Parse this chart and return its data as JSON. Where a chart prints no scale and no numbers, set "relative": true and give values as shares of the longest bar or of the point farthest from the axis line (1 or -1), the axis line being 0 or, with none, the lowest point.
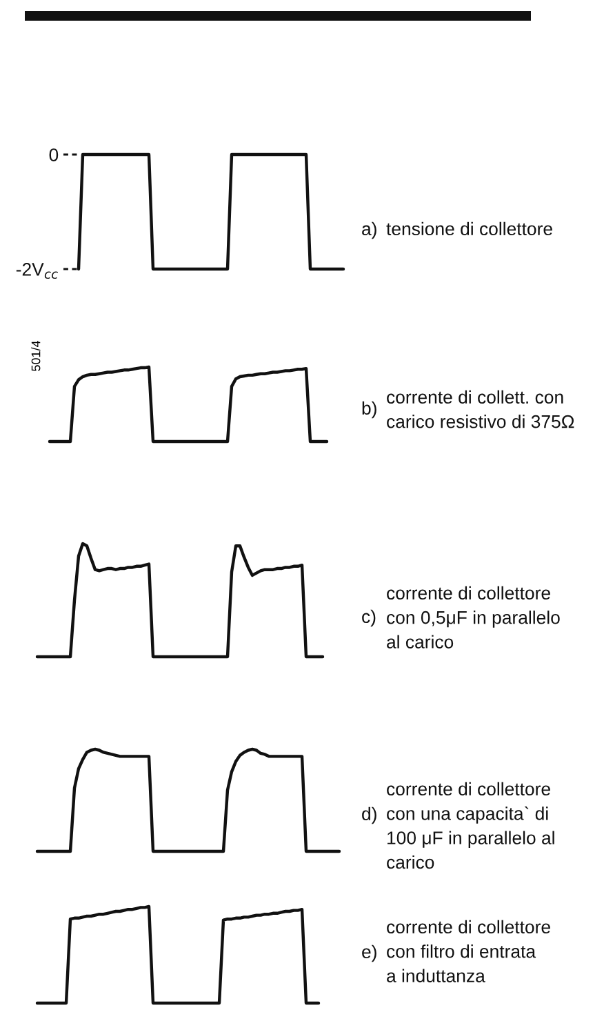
{
  "chart_data": [
    {
      "type": "line",
      "annotations": [
        "a)",
        "tensione di collettore"
      ],
      "tick_labels": "y",
      "ylim": [
        -2,
        0
      ],
      "yticks": [
        0,
        {
          "value": -2,
          "label": "-2V$_{cc}$"
        }
      ],
      "color": "#111111",
      "categories": [
        null,
        null,
        null,
        null,
        null,
        null,
        null,
        null,
        null,
        null,
        null,
        null,
        null,
        null,
        null,
        null,
        null,
        null,
        null,
        null,
        null,
        null,
        null,
        null,
        null,
        null,
        null,
        null,
        null,
        null,
        null,
        null,
        null,
        null,
        null,
        null,
        null,
        null,
        null,
        null,
        null,
        null,
        null,
        null,
        null,
        null,
        null,
        null,
        null,
        null,
        null,
        null,
        null,
        null,
        null,
        null,
        null,
        null,
        null,
        null,
        null,
        null,
        null,
        null,
        null,
        null,
        null,
        null,
        null,
        null,
        null,
        null,
        null,
        null,
        null,
        null,
        null
      ],
      "values": [
        null,
        null,
        null,
        null,
        null,
        null,
        null,
        null,
        null,
        null,
        null,
        null,
        -2,
        0,
        0,
        0,
        0,
        0,
        0,
        0,
        0,
        0,
        0,
        0,
        0,
        0,
        0,
        0,
        0,
        0,
        -2,
        -2,
        -2,
        -2,
        -2,
        -2,
        -2,
        -2,
        -2,
        -2,
        -2,
        -2,
        -2,
        -2,
        -2,
        -2,
        -2,
        -2,
        -2,
        0,
        0,
        0,
        0,
        0,
        0,
        0,
        0,
        0,
        0,
        0,
        0,
        0,
        0,
        0,
        0,
        0,
        0,
        0,
        -2,
        -2,
        -2,
        -2,
        -2,
        -2,
        -2,
        -2,
        -2
      ]
    },
    {
      "type": "line",
      "ylabel": "501/4",
      "annotations": [
        "b)",
        "corrente di collett. con",
        "carico resistivo di 375Ω"
      ],
      "relative": true,
      "tick_labels": false,
      "color": "#111111",
      "categories": [
        null,
        null,
        null,
        null,
        null,
        null,
        null,
        null,
        null,
        null,
        null,
        null,
        null,
        null,
        null,
        null,
        null,
        null,
        null,
        null,
        null,
        null,
        null,
        null,
        null,
        null,
        null,
        null,
        null,
        null,
        null,
        null,
        null,
        null,
        null,
        null,
        null,
        null,
        null,
        null,
        null,
        null,
        null,
        null,
        null,
        null,
        null,
        null,
        null,
        null,
        null,
        null,
        null,
        null,
        null,
        null,
        null,
        null,
        null,
        null,
        null,
        null,
        null,
        null,
        null,
        null,
        null,
        null,
        null,
        null,
        null,
        null,
        null,
        null,
        null,
        null,
        null
      ],
      "values": [
        null,
        null,
        null,
        null,
        null,
        0,
        0,
        0,
        0,
        0,
        0,
        0.74,
        0.83,
        0.87,
        0.89,
        0.9,
        0.9,
        0.91,
        0.92,
        0.93,
        0.93,
        0.94,
        0.95,
        0.96,
        0.96,
        0.97,
        0.98,
        0.99,
        0.99,
        1,
        0,
        0,
        0,
        0,
        0,
        0,
        0,
        0,
        0,
        0,
        0,
        0,
        0,
        0,
        0,
        0,
        0,
        0,
        0,
        0.74,
        0.84,
        0.87,
        0.88,
        0.89,
        0.89,
        0.9,
        0.91,
        0.91,
        0.92,
        0.93,
        0.93,
        0.94,
        0.95,
        0.95,
        0.96,
        0.97,
        0.97,
        0.98,
        0,
        0,
        0,
        0,
        0,
        null,
        null,
        null,
        null
      ]
    },
    {
      "type": "line",
      "annotations": [
        "c)",
        "corrente di collettore",
        "con 0,5μF in parallelo",
        "al carico"
      ],
      "relative": true,
      "tick_labels": false,
      "color": "#111111",
      "categories": [
        null,
        null,
        null,
        null,
        null,
        null,
        null,
        null,
        null,
        null,
        null,
        null,
        null,
        null,
        null,
        null,
        null,
        null,
        null,
        null,
        null,
        null,
        null,
        null,
        null,
        null,
        null,
        null,
        null,
        null,
        null,
        null,
        null,
        null,
        null,
        null,
        null,
        null,
        null,
        null,
        null,
        null,
        null,
        null,
        null,
        null,
        null,
        null,
        null,
        null,
        null,
        null,
        null,
        null,
        null,
        null,
        null,
        null,
        null,
        null,
        null,
        null,
        null,
        null,
        null,
        null,
        null,
        null,
        null,
        null,
        null,
        null,
        null,
        null,
        null,
        null,
        null
      ],
      "values": [
        null,
        null,
        0,
        0,
        0,
        0,
        0,
        0,
        0,
        0,
        0,
        0.5,
        0.89,
        1,
        0.98,
        0.87,
        0.77,
        0.76,
        0.77,
        0.78,
        0.78,
        0.77,
        0.78,
        0.78,
        0.79,
        0.79,
        0.8,
        0.8,
        0.81,
        0.82,
        0,
        0,
        0,
        0,
        0,
        0,
        0,
        0,
        0,
        0,
        0,
        0,
        0,
        0,
        0,
        0,
        0,
        0,
        0,
        0.75,
        0.98,
        0.98,
        0.88,
        0.79,
        0.72,
        0.74,
        0.76,
        0.77,
        0.77,
        0.77,
        0.78,
        0.78,
        0.79,
        0.79,
        0.8,
        0.8,
        0.81,
        0,
        0,
        0,
        0,
        0,
        null,
        null,
        null,
        null,
        null
      ]
    },
    {
      "type": "line",
      "annotations": [
        "d)",
        "corrente di collettore",
        "con una capacita` di",
        "100 μF in parallelo al",
        "carico"
      ],
      "relative": true,
      "tick_labels": false,
      "color": "#111111",
      "categories": [
        null,
        null,
        null,
        null,
        null,
        null,
        null,
        null,
        null,
        null,
        null,
        null,
        null,
        null,
        null,
        null,
        null,
        null,
        null,
        null,
        null,
        null,
        null,
        null,
        null,
        null,
        null,
        null,
        null,
        null,
        null,
        null,
        null,
        null,
        null,
        null,
        null,
        null,
        null,
        null,
        null,
        null,
        null,
        null,
        null,
        null,
        null,
        null,
        null,
        null,
        null,
        null,
        null,
        null,
        null,
        null,
        null,
        null,
        null,
        null,
        null,
        null,
        null,
        null,
        null,
        null,
        null,
        null,
        null,
        null,
        null,
        null,
        null,
        null,
        null,
        null,
        null
      ],
      "values": [
        null,
        null,
        0,
        0,
        0,
        0,
        0,
        0,
        0,
        0,
        0,
        0.62,
        0.81,
        0.9,
        0.97,
        0.99,
        1,
        0.99,
        0.97,
        0.96,
        0.95,
        0.94,
        0.93,
        0.93,
        0.93,
        0.93,
        0.93,
        0.93,
        0.93,
        0.93,
        0,
        0,
        0,
        0,
        0,
        0,
        0,
        0,
        0,
        0,
        0,
        0,
        0,
        0,
        0,
        0,
        0,
        0,
        0.6,
        0.78,
        0.88,
        0.94,
        0.97,
        0.99,
        1,
        0.99,
        0.96,
        0.95,
        0.93,
        0.93,
        0.93,
        0.93,
        0.93,
        0.93,
        0.93,
        0.93,
        0.93,
        0,
        0,
        0,
        0,
        0,
        0,
        0,
        0,
        0,
        null
      ]
    },
    {
      "type": "line",
      "annotations": [
        "e)",
        "corrente di collettore",
        "con filtro di entrata",
        "a induttanza"
      ],
      "relative": true,
      "tick_labels": false,
      "color": "#111111",
      "categories": [
        null,
        null,
        null,
        null,
        null,
        null,
        null,
        null,
        null,
        null,
        null,
        null,
        null,
        null,
        null,
        null,
        null,
        null,
        null,
        null,
        null,
        null,
        null,
        null,
        null,
        null,
        null,
        null,
        null,
        null,
        null,
        null,
        null,
        null,
        null,
        null,
        null,
        null,
        null,
        null,
        null,
        null,
        null,
        null,
        null,
        null,
        null,
        null,
        null,
        null,
        null,
        null,
        null,
        null,
        null,
        null,
        null,
        null,
        null,
        null,
        null,
        null,
        null,
        null,
        null,
        null,
        null,
        null,
        null,
        null,
        null,
        null,
        null,
        null,
        null,
        null,
        null
      ],
      "values": [
        null,
        null,
        0,
        0,
        0,
        0,
        0,
        0,
        0,
        0,
        0.87,
        0.88,
        0.88,
        0.89,
        0.9,
        0.9,
        0.91,
        0.92,
        0.92,
        0.93,
        0.94,
        0.95,
        0.95,
        0.96,
        0.97,
        0.97,
        0.98,
        0.99,
        0.99,
        1,
        0,
        0,
        0,
        0,
        0,
        0,
        0,
        0,
        0,
        0,
        0,
        0,
        0,
        0,
        0,
        0,
        0,
        0.86,
        0.87,
        0.87,
        0.88,
        0.88,
        0.89,
        0.89,
        0.9,
        0.91,
        0.91,
        0.92,
        0.92,
        0.93,
        0.93,
        0.94,
        0.95,
        0.95,
        0.96,
        0.96,
        0.97,
        0,
        0,
        0,
        0,
        null,
        null,
        null,
        null,
        null,
        null
      ]
    }
  ]
}
